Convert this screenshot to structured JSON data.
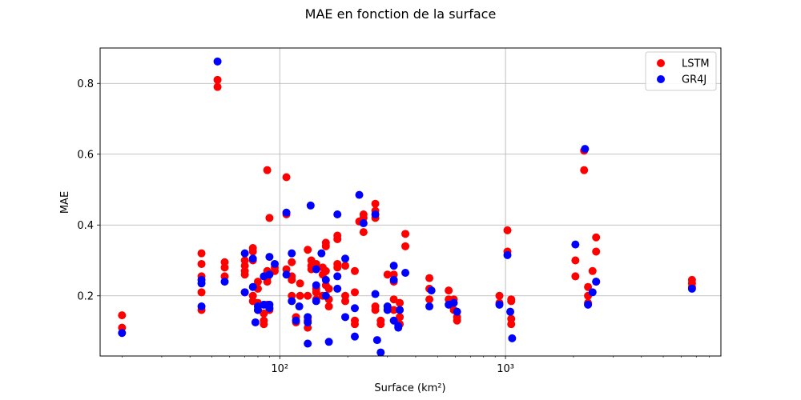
{
  "chart_data": {
    "type": "scatter",
    "title": "MAE en fonction de la surface",
    "xlabel": "Surface (km²)",
    "ylabel": "MAE",
    "xscale": "log",
    "xlim": [
      16,
      9000
    ],
    "ylim": [
      0.03,
      0.9
    ],
    "x_ticks": [
      100,
      1000
    ],
    "x_tick_labels": [
      "10²",
      "10³"
    ],
    "y_ticks": [
      0.2,
      0.4,
      0.6,
      0.8
    ],
    "y_tick_labels": [
      "0.2",
      "0.4",
      "0.6",
      "0.8"
    ],
    "grid": true,
    "legend_position": "top-right",
    "series": [
      {
        "name": "LSTM",
        "color": "#ff0000",
        "points": [
          [
            20,
            0.145
          ],
          [
            20,
            0.11
          ],
          [
            45,
            0.32
          ],
          [
            45,
            0.29
          ],
          [
            45,
            0.255
          ],
          [
            45,
            0.21
          ],
          [
            45,
            0.16
          ],
          [
            53,
            0.81
          ],
          [
            53,
            0.79
          ],
          [
            57,
            0.295
          ],
          [
            57,
            0.28
          ],
          [
            57,
            0.255
          ],
          [
            70,
            0.3
          ],
          [
            70,
            0.285
          ],
          [
            70,
            0.27
          ],
          [
            70,
            0.26
          ],
          [
            70,
            0.21
          ],
          [
            76,
            0.335
          ],
          [
            76,
            0.325
          ],
          [
            76,
            0.3
          ],
          [
            76,
            0.2
          ],
          [
            76,
            0.185
          ],
          [
            80,
            0.24
          ],
          [
            80,
            0.22
          ],
          [
            80,
            0.18
          ],
          [
            80,
            0.16
          ],
          [
            85,
            0.13
          ],
          [
            85,
            0.12
          ],
          [
            85,
            0.15
          ],
          [
            88,
            0.555
          ],
          [
            88,
            0.27
          ],
          [
            88,
            0.25
          ],
          [
            88,
            0.24
          ],
          [
            88,
            0.175
          ],
          [
            90,
            0.42
          ],
          [
            90,
            0.16
          ],
          [
            95,
            0.27
          ],
          [
            95,
            0.28
          ],
          [
            107,
            0.535
          ],
          [
            107,
            0.43
          ],
          [
            107,
            0.275
          ],
          [
            113,
            0.295
          ],
          [
            113,
            0.255
          ],
          [
            113,
            0.245
          ],
          [
            113,
            0.2
          ],
          [
            118,
            0.14
          ],
          [
            118,
            0.125
          ],
          [
            123,
            0.235
          ],
          [
            123,
            0.2
          ],
          [
            133,
            0.33
          ],
          [
            133,
            0.2
          ],
          [
            133,
            0.13
          ],
          [
            133,
            0.11
          ],
          [
            138,
            0.3
          ],
          [
            138,
            0.285
          ],
          [
            138,
            0.275
          ],
          [
            145,
            0.29
          ],
          [
            145,
            0.22
          ],
          [
            145,
            0.21
          ],
          [
            145,
            0.19
          ],
          [
            155,
            0.28
          ],
          [
            155,
            0.26
          ],
          [
            155,
            0.2
          ],
          [
            160,
            0.35
          ],
          [
            160,
            0.34
          ],
          [
            160,
            0.27
          ],
          [
            160,
            0.23
          ],
          [
            165,
            0.22
          ],
          [
            165,
            0.19
          ],
          [
            165,
            0.17
          ],
          [
            180,
            0.37
          ],
          [
            180,
            0.36
          ],
          [
            180,
            0.29
          ],
          [
            180,
            0.28
          ],
          [
            195,
            0.285
          ],
          [
            195,
            0.2
          ],
          [
            195,
            0.185
          ],
          [
            215,
            0.27
          ],
          [
            215,
            0.21
          ],
          [
            215,
            0.13
          ],
          [
            215,
            0.12
          ],
          [
            225,
            0.41
          ],
          [
            235,
            0.43
          ],
          [
            235,
            0.42
          ],
          [
            235,
            0.38
          ],
          [
            265,
            0.46
          ],
          [
            265,
            0.44
          ],
          [
            265,
            0.42
          ],
          [
            265,
            0.17
          ],
          [
            265,
            0.16
          ],
          [
            280,
            0.12
          ],
          [
            280,
            0.13
          ],
          [
            300,
            0.26
          ],
          [
            320,
            0.26
          ],
          [
            320,
            0.24
          ],
          [
            320,
            0.19
          ],
          [
            320,
            0.16
          ],
          [
            340,
            0.18
          ],
          [
            340,
            0.14
          ],
          [
            340,
            0.12
          ],
          [
            360,
            0.375
          ],
          [
            360,
            0.34
          ],
          [
            460,
            0.25
          ],
          [
            460,
            0.22
          ],
          [
            460,
            0.19
          ],
          [
            560,
            0.215
          ],
          [
            560,
            0.19
          ],
          [
            590,
            0.19
          ],
          [
            590,
            0.16
          ],
          [
            610,
            0.14
          ],
          [
            610,
            0.13
          ],
          [
            940,
            0.2
          ],
          [
            940,
            0.18
          ],
          [
            1020,
            0.385
          ],
          [
            1020,
            0.325
          ],
          [
            1060,
            0.19
          ],
          [
            1060,
            0.185
          ],
          [
            1060,
            0.135
          ],
          [
            1060,
            0.12
          ],
          [
            2040,
            0.3
          ],
          [
            2040,
            0.255
          ],
          [
            2230,
            0.555
          ],
          [
            2230,
            0.61
          ],
          [
            2320,
            0.225
          ],
          [
            2320,
            0.2
          ],
          [
            2320,
            0.18
          ],
          [
            2430,
            0.27
          ],
          [
            2520,
            0.365
          ],
          [
            2520,
            0.325
          ],
          [
            2520,
            0.24
          ],
          [
            6700,
            0.245
          ],
          [
            6700,
            0.235
          ],
          [
            6700,
            0.225
          ]
        ]
      },
      {
        "name": "GR4J",
        "color": "#0000ff",
        "points": [
          [
            20,
            0.095
          ],
          [
            45,
            0.245
          ],
          [
            45,
            0.235
          ],
          [
            45,
            0.17
          ],
          [
            53,
            0.862
          ],
          [
            57,
            0.24
          ],
          [
            70,
            0.32
          ],
          [
            70,
            0.21
          ],
          [
            76,
            0.305
          ],
          [
            76,
            0.225
          ],
          [
            78,
            0.125
          ],
          [
            80,
            0.17
          ],
          [
            80,
            0.16
          ],
          [
            85,
            0.255
          ],
          [
            85,
            0.175
          ],
          [
            90,
            0.31
          ],
          [
            90,
            0.26
          ],
          [
            90,
            0.175
          ],
          [
            90,
            0.165
          ],
          [
            95,
            0.29
          ],
          [
            107,
            0.435
          ],
          [
            107,
            0.26
          ],
          [
            113,
            0.32
          ],
          [
            113,
            0.185
          ],
          [
            118,
            0.13
          ],
          [
            122,
            0.17
          ],
          [
            133,
            0.14
          ],
          [
            133,
            0.125
          ],
          [
            133,
            0.065
          ],
          [
            137,
            0.455
          ],
          [
            145,
            0.275
          ],
          [
            145,
            0.23
          ],
          [
            145,
            0.185
          ],
          [
            153,
            0.32
          ],
          [
            160,
            0.245
          ],
          [
            160,
            0.2
          ],
          [
            165,
            0.07
          ],
          [
            180,
            0.43
          ],
          [
            180,
            0.255
          ],
          [
            180,
            0.22
          ],
          [
            195,
            0.305
          ],
          [
            195,
            0.14
          ],
          [
            215,
            0.165
          ],
          [
            215,
            0.085
          ],
          [
            225,
            0.485
          ],
          [
            235,
            0.405
          ],
          [
            265,
            0.43
          ],
          [
            265,
            0.205
          ],
          [
            270,
            0.075
          ],
          [
            280,
            0.04
          ],
          [
            300,
            0.17
          ],
          [
            300,
            0.16
          ],
          [
            320,
            0.285
          ],
          [
            320,
            0.245
          ],
          [
            320,
            0.13
          ],
          [
            335,
            0.115
          ],
          [
            335,
            0.11
          ],
          [
            340,
            0.16
          ],
          [
            360,
            0.265
          ],
          [
            460,
            0.17
          ],
          [
            470,
            0.215
          ],
          [
            560,
            0.175
          ],
          [
            590,
            0.18
          ],
          [
            610,
            0.155
          ],
          [
            940,
            0.175
          ],
          [
            1020,
            0.315
          ],
          [
            1050,
            0.155
          ],
          [
            1070,
            0.08
          ],
          [
            2040,
            0.345
          ],
          [
            2250,
            0.615
          ],
          [
            2320,
            0.175
          ],
          [
            2430,
            0.21
          ],
          [
            2520,
            0.24
          ],
          [
            6700,
            0.22
          ]
        ]
      }
    ]
  }
}
